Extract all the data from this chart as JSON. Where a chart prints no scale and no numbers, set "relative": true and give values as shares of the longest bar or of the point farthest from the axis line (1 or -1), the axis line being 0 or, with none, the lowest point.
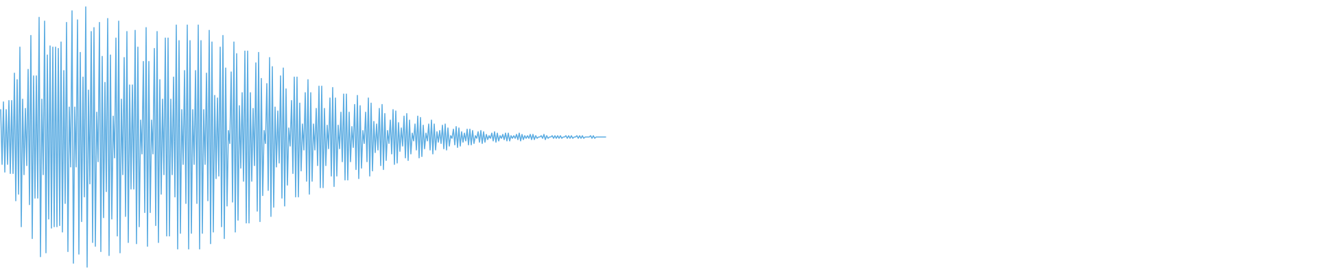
{
  "chart_data": {
    "type": "line",
    "relative": true,
    "categories": [
      null,
      null,
      null,
      null,
      null,
      null,
      null,
      null,
      null,
      null,
      null,
      null,
      null,
      null,
      null,
      null,
      null,
      null,
      null,
      null,
      null,
      null,
      null,
      null,
      null,
      null,
      null,
      null,
      null,
      null,
      null,
      null,
      null,
      null,
      null,
      null,
      null,
      null,
      null,
      null,
      null,
      null,
      null,
      null,
      null,
      null,
      null,
      null,
      null,
      null,
      null,
      null,
      null,
      null,
      null,
      null,
      null,
      null,
      null,
      null,
      null,
      null,
      null,
      null,
      null,
      null,
      null,
      null,
      null,
      null,
      null,
      null,
      null,
      null,
      null,
      null,
      null,
      null,
      null,
      null,
      null,
      null,
      null,
      null,
      null,
      null,
      null,
      null,
      null,
      null,
      null,
      null,
      null,
      null,
      null,
      null,
      null,
      null,
      null,
      null,
      null,
      null,
      null,
      null,
      null,
      null,
      null,
      null,
      null,
      null,
      null,
      null,
      null,
      null,
      null,
      null,
      null,
      null,
      null,
      null,
      null,
      null,
      null,
      null,
      null,
      null,
      null,
      null,
      null,
      null,
      null,
      null,
      null,
      null,
      null,
      null,
      null,
      null,
      null,
      null,
      null,
      null,
      null,
      null,
      null,
      null,
      null,
      null,
      null,
      null,
      null,
      null,
      null,
      null,
      null,
      null,
      null,
      null,
      null,
      null,
      null,
      null,
      null,
      null,
      null,
      null,
      null,
      null,
      null,
      null,
      null,
      null,
      null,
      null,
      null,
      null,
      null,
      null,
      null,
      null,
      null,
      null,
      null,
      null,
      null,
      null,
      null,
      null,
      null,
      null,
      null,
      null,
      null,
      null,
      null,
      null,
      null,
      null,
      null,
      null,
      null,
      null,
      null,
      null,
      null,
      null,
      null,
      null,
      null,
      null,
      null,
      null,
      null,
      null,
      null,
      null,
      null,
      null,
      null,
      null,
      null,
      null,
      null,
      null,
      null,
      null,
      null,
      null,
      null,
      null,
      null,
      null,
      null,
      null,
      null,
      null,
      null,
      null,
      null,
      null,
      null,
      null,
      null,
      null,
      null,
      null,
      null,
      null,
      null,
      null,
      null,
      null,
      null,
      null,
      null,
      null,
      null,
      null,
      null,
      null,
      null,
      null,
      null,
      null,
      null,
      null,
      null,
      null,
      null,
      null,
      null,
      null,
      null,
      null,
      null,
      null,
      null,
      null,
      null,
      null,
      null,
      null,
      null,
      null,
      null,
      null,
      null,
      null,
      null,
      null,
      null,
      null,
      null,
      null,
      null,
      null,
      null,
      null,
      null,
      null,
      null,
      null,
      null,
      null,
      null,
      null,
      null,
      null,
      null,
      null,
      null,
      null,
      null,
      null,
      null,
      null,
      null,
      null,
      null,
      null,
      null,
      null,
      null,
      null,
      null,
      null,
      null,
      null,
      null,
      null,
      null,
      null,
      null,
      null,
      null,
      null,
      null,
      null,
      null,
      null,
      null,
      null,
      null,
      null,
      null,
      null,
      null,
      null,
      null,
      null,
      null,
      null,
      null,
      null,
      null,
      null,
      null,
      null,
      null,
      null,
      null,
      null,
      null,
      null,
      null,
      null,
      null,
      null,
      null,
      null,
      null,
      null,
      null,
      null,
      null,
      null,
      null,
      null,
      null,
      null,
      null,
      null,
      null,
      null,
      null,
      null,
      null,
      null,
      null,
      null,
      null,
      null,
      null,
      null,
      null,
      null,
      null,
      null,
      null,
      null,
      null,
      null,
      null,
      null,
      null,
      null,
      null,
      null,
      null,
      null,
      null,
      null,
      null,
      null,
      null,
      null,
      null,
      null,
      null,
      null,
      null,
      null,
      null,
      null,
      null,
      null,
      null,
      null,
      null,
      null,
      null,
      null,
      null,
      null,
      null,
      null,
      null,
      null,
      null,
      null,
      null,
      null,
      null,
      null,
      null,
      null,
      null,
      null,
      null,
      null,
      null,
      null,
      null,
      null,
      null,
      null,
      null,
      null,
      null,
      null,
      null,
      null,
      null,
      null,
      null,
      null,
      null,
      null,
      null,
      null,
      null,
      null,
      null,
      null,
      null,
      null,
      null,
      null,
      null,
      null,
      null,
      null,
      null,
      null,
      null,
      null,
      null,
      null,
      null,
      null,
      null,
      null,
      null,
      null,
      null,
      null,
      null,
      null,
      null,
      null,
      null,
      null,
      null,
      null,
      null,
      null,
      null,
      null,
      null,
      null,
      null,
      null,
      null,
      null,
      null,
      null,
      null,
      null,
      null,
      null,
      null,
      null,
      null,
      null,
      null,
      null,
      null,
      null,
      null,
      null,
      null,
      null,
      null,
      null,
      null,
      null,
      null,
      null,
      null,
      null,
      null,
      null,
      null,
      null,
      null,
      null,
      null,
      null,
      null,
      null,
      null,
      null,
      null,
      null,
      null,
      null,
      null,
      null,
      null,
      null,
      null,
      null,
      null,
      null,
      null,
      null,
      null,
      null,
      null,
      null,
      null,
      null,
      null,
      null,
      null,
      null,
      null,
      null,
      null,
      null,
      null,
      null,
      null,
      null,
      null,
      null,
      null,
      null,
      null,
      null,
      null,
      null,
      null,
      null,
      null,
      null,
      null,
      null,
      null,
      null,
      null,
      null,
      null,
      null,
      null,
      null,
      null,
      null,
      null,
      null,
      null,
      null,
      null,
      null,
      null,
      null,
      null,
      null,
      null,
      null,
      null,
      null,
      null,
      null,
      null,
      null,
      null,
      null,
      null,
      null,
      null,
      null,
      null,
      null,
      null,
      null,
      null,
      null,
      null,
      null,
      null,
      null,
      null,
      null,
      null,
      null,
      null,
      null,
      null,
      null,
      null,
      null,
      null,
      null,
      null,
      null,
      null,
      null,
      null,
      null,
      null,
      null,
      null,
      null,
      null,
      null,
      null,
      null,
      null,
      null,
      null,
      null,
      null,
      null,
      null,
      null,
      null,
      null,
      null,
      null,
      null,
      null,
      null,
      null,
      null,
      null,
      null,
      null,
      null,
      null,
      null,
      null,
      null,
      null,
      null,
      null,
      null,
      null,
      null,
      null,
      null,
      null,
      null,
      null,
      null,
      null,
      null,
      null,
      null,
      null,
      null,
      null,
      null,
      null,
      null,
      null,
      null,
      null,
      null,
      null,
      null,
      null,
      null,
      null,
      null,
      null,
      null,
      null,
      null,
      null,
      null,
      null,
      null,
      null,
      null,
      null,
      null,
      null,
      null,
      null,
      null,
      null,
      null,
      null,
      null,
      null,
      null,
      null,
      null,
      null,
      null,
      null,
      null,
      null,
      null,
      null,
      null,
      null,
      null,
      null,
      null,
      null,
      null,
      null,
      null,
      null,
      null,
      null,
      null,
      null,
      null,
      null,
      null,
      null,
      null,
      null,
      null,
      null,
      null,
      null,
      null,
      null,
      null,
      null,
      null,
      null,
      null,
      null,
      null,
      null,
      null,
      null,
      null,
      null,
      null,
      null,
      null,
      null,
      null,
      null,
      null,
      null,
      null,
      null,
      null,
      null,
      null,
      null,
      null,
      null,
      null,
      null,
      null,
      null,
      null,
      null,
      null,
      null,
      null,
      null,
      null,
      null,
      null,
      null,
      null,
      null,
      null,
      null,
      null,
      null,
      null,
      null,
      null,
      null,
      null,
      null,
      null,
      null,
      null,
      null,
      null,
      null,
      null,
      null,
      null,
      null,
      null,
      null,
      null,
      null,
      null,
      null,
      null,
      null,
      null,
      null,
      null,
      null,
      null,
      null,
      null,
      null,
      null,
      null,
      null,
      null,
      null,
      null,
      null,
      null,
      null,
      null,
      null,
      null,
      null,
      null,
      null,
      null,
      null,
      null,
      null,
      null,
      null,
      null,
      null,
      null,
      null,
      null,
      null,
      null,
      null,
      null,
      null,
      null,
      null,
      null,
      null,
      null,
      null,
      null,
      null,
      null,
      null,
      null,
      null,
      null,
      null,
      null,
      null,
      null,
      null,
      null,
      null,
      null,
      null,
      null,
      null,
      null,
      null,
      null,
      null,
      null,
      null,
      null,
      null,
      null,
      null,
      null,
      null,
      null,
      null,
      null,
      null,
      null,
      null,
      null,
      null,
      null,
      null,
      null,
      null,
      null,
      null,
      null,
      null,
      null,
      null,
      null,
      null,
      null,
      null,
      null,
      null,
      null,
      null,
      null,
      null,
      null,
      null,
      null
    ],
    "series": [
      {
        "color": "#5dade2",
        "values": [
          0.605,
          0.395,
          0.635,
          0.365,
          0.605,
          0.395,
          0.64,
          0.36,
          0.64,
          0.36,
          0.745,
          0.255,
          0.72,
          0.28,
          0.845,
          0.155,
          0.645,
          0.355,
          0.61,
          0.39,
          0.76,
          0.24,
          0.89,
          0.11,
          0.735,
          0.265,
          0.735,
          0.265,
          0.96,
          0.04,
          0.645,
          0.355,
          0.945,
          0.055,
          0.815,
          0.185,
          0.85,
          0.15,
          0.845,
          0.155,
          0.845,
          0.155,
          0.84,
          0.16,
          0.865,
          0.135,
          0.755,
          0.245,
          0.94,
          0.06,
          0.615,
          0.385,
          0.985,
          0.015,
          0.615,
          0.385,
          0.95,
          0.05,
          0.825,
          0.175,
          0.73,
          0.27,
          1,
          0,
          0.68,
          0.32,
          0.905,
          0.095,
          0.92,
          0.08,
          0.595,
          0.405,
          0.94,
          0.06,
          0.81,
          0.19,
          0.71,
          0.29,
          0.955,
          0.045,
          0.815,
          0.185,
          0.58,
          0.42,
          0.88,
          0.12,
          0.945,
          0.055,
          0.645,
          0.355,
          0.805,
          0.195,
          0.905,
          0.095,
          0.7,
          0.3,
          0.7,
          0.3,
          0.91,
          0.09,
          0.845,
          0.155,
          0.565,
          0.435,
          0.79,
          0.21,
          0.92,
          0.08,
          0.79,
          0.21,
          0.565,
          0.435,
          0.84,
          0.16,
          0.905,
          0.095,
          0.72,
          0.28,
          0.645,
          0.355,
          0.88,
          0.12,
          0.88,
          0.12,
          0.645,
          0.355,
          0.73,
          0.27,
          0.93,
          0.07,
          0.87,
          0.13,
          0.605,
          0.395,
          0.755,
          0.245,
          0.93,
          0.07,
          0.87,
          0.13,
          0.605,
          0.395,
          0.755,
          0.245,
          0.93,
          0.07,
          0.87,
          0.13,
          0.605,
          0.395,
          0.745,
          0.255,
          0.91,
          0.09,
          0.865,
          0.135,
          0.66,
          0.34,
          0.65,
          0.35,
          0.845,
          0.155,
          0.89,
          0.11,
          0.765,
          0.235,
          0.525,
          0.475,
          0.75,
          0.25,
          0.865,
          0.135,
          0.82,
          0.18,
          0.62,
          0.38,
          0.67,
          0.33,
          0.83,
          0.17,
          0.83,
          0.17,
          0.67,
          0.33,
          0.61,
          0.39,
          0.785,
          0.215,
          0.825,
          0.175,
          0.725,
          0.275,
          0.525,
          0.475,
          0.705,
          0.295,
          0.805,
          0.195,
          0.77,
          0.23,
          0.615,
          0.385,
          0.6,
          0.4,
          0.735,
          0.265,
          0.765,
          0.235,
          0.685,
          0.315,
          0.535,
          0.465,
          0.64,
          0.36,
          0.73,
          0.27,
          0.73,
          0.27,
          0.63,
          0.37,
          0.55,
          0.45,
          0.67,
          0.33,
          0.72,
          0.28,
          0.67,
          0.33,
          0.55,
          0.45,
          0.61,
          0.39,
          0.695,
          0.305,
          0.695,
          0.305,
          0.61,
          0.39,
          0.545,
          0.455,
          0.65,
          0.35,
          0.69,
          0.31,
          0.65,
          0.35,
          0.545,
          0.455,
          0.595,
          0.405,
          0.665,
          0.335,
          0.665,
          0.335,
          0.595,
          0.405,
          0.54,
          0.46,
          0.625,
          0.375,
          0.66,
          0.34,
          0.62,
          0.38,
          0.525,
          0.475,
          0.595,
          0.405,
          0.65,
          0.35,
          0.63,
          0.37,
          0.56,
          0.44,
          0.55,
          0.45,
          0.61,
          0.39,
          0.625,
          0.375,
          0.59,
          0.41,
          0.525,
          0.475,
          0.565,
          0.435,
          0.605,
          0.395,
          0.6,
          0.4,
          0.555,
          0.445,
          0.535,
          0.465,
          0.58,
          0.42,
          0.59,
          0.41,
          0.565,
          0.435,
          0.515,
          0.485,
          0.55,
          0.45,
          0.58,
          0.42,
          0.575,
          0.425,
          0.545,
          0.455,
          0.515,
          0.485,
          0.55,
          0.45,
          0.565,
          0.435,
          0.55,
          0.45,
          0.52,
          0.48,
          0.525,
          0.475,
          0.545,
          0.455,
          0.55,
          0.45,
          0.535,
          0.465,
          0.505,
          0.495,
          0.53,
          0.47,
          0.54,
          0.46,
          0.535,
          0.465,
          0.52,
          0.48,
          0.515,
          0.485,
          0.53,
          0.47,
          0.53,
          0.47,
          0.525,
          0.475,
          0.505,
          0.495,
          0.52,
          0.48,
          0.525,
          0.475,
          0.52,
          0.48,
          0.51,
          0.49,
          0.505,
          0.495,
          0.515,
          0.485,
          0.52,
          0.48,
          0.515,
          0.485,
          0.505,
          0.495,
          0.51,
          0.49,
          0.515,
          0.485,
          0.515,
          0.485,
          0.505,
          0.495,
          0.505,
          0.495,
          0.51,
          0.49,
          0.515,
          0.485,
          0.51,
          0.49,
          0.505,
          0.495,
          0.505,
          0.495,
          0.51,
          0.49,
          0.51,
          0.49,
          0.505,
          0.495,
          0.5,
          0.5,
          0.505,
          0.495,
          0.51,
          0.49,
          0.505,
          0.495,
          0.5,
          0.5,
          0.505,
          0.495,
          0.505,
          0.495,
          0.505,
          0.495,
          0.505,
          0.495,
          0.5,
          0.5,
          0.505,
          0.495,
          0.505,
          0.495,
          0.505,
          0.495,
          0.5,
          0.5,
          0.505,
          0.495,
          0.505,
          0.495,
          0.505,
          0.495,
          0.5,
          0.5,
          0.5,
          0.5,
          0.505,
          0.495,
          0.505,
          0.495,
          0.5,
          0.5,
          0.5,
          0.5,
          0.5,
          0.5,
          0.5,
          0.5,
          null,
          null,
          null,
          null,
          null,
          null,
          null,
          null,
          null,
          null,
          null,
          null,
          null,
          null,
          null,
          null,
          null,
          null,
          null,
          null,
          null,
          null,
          null,
          null,
          null,
          null,
          null,
          null,
          null,
          null,
          null,
          null,
          null,
          null,
          null,
          null,
          null,
          null,
          null,
          null,
          null,
          null,
          null,
          null,
          null,
          null,
          null,
          null,
          null,
          null,
          null,
          null,
          null,
          null,
          null,
          null,
          null,
          null,
          null,
          null,
          null,
          null,
          null,
          null,
          null,
          null,
          null,
          null,
          null,
          null,
          null,
          null,
          null,
          null,
          null,
          null,
          null,
          null,
          null,
          null,
          null,
          null,
          null,
          null,
          null,
          null,
          null,
          null,
          null,
          null,
          null,
          null,
          null,
          null,
          null,
          null,
          null,
          null,
          null,
          null,
          null,
          null,
          null,
          null,
          null,
          null,
          null,
          null,
          null,
          null,
          null,
          null,
          null,
          null,
          null,
          null,
          null,
          null,
          null,
          null,
          null,
          null,
          null,
          null,
          null,
          null,
          null,
          null,
          null,
          null,
          null,
          null,
          null,
          null,
          null,
          null,
          null,
          null,
          null,
          null,
          null,
          null,
          null,
          null,
          null,
          null,
          null,
          null,
          null,
          null,
          null,
          null,
          null,
          null,
          null,
          null,
          null,
          null,
          null,
          null,
          null,
          null,
          null,
          null,
          null,
          null,
          null,
          null,
          null,
          null,
          null,
          null,
          null,
          null,
          null,
          null,
          null,
          null,
          null,
          null,
          null,
          null,
          null,
          null,
          null,
          null,
          null,
          null,
          null,
          null,
          null,
          null,
          null,
          null,
          null,
          null,
          null,
          null,
          null,
          null,
          null,
          null,
          null,
          null,
          null,
          null,
          null,
          null,
          null,
          null,
          null,
          null,
          null,
          null,
          null,
          null,
          null,
          null,
          null,
          null,
          null,
          null,
          null,
          null,
          null,
          null,
          null,
          null,
          null,
          null,
          null,
          null,
          null,
          null,
          null,
          null,
          null,
          null,
          null,
          null,
          null,
          null,
          null,
          null,
          null,
          null,
          null,
          null,
          null,
          null,
          null,
          null,
          null,
          null,
          null,
          null,
          null,
          null,
          null,
          null,
          null,
          null,
          null,
          null,
          null,
          null,
          null,
          null,
          null,
          null,
          null,
          null,
          null,
          null,
          null,
          null,
          null,
          null,
          null,
          null,
          null,
          null,
          null,
          null,
          null,
          null,
          null,
          null,
          null,
          null,
          null,
          null,
          null,
          null,
          null,
          null,
          null,
          null,
          null,
          null,
          null,
          null,
          null,
          null,
          null,
          null,
          null,
          null,
          null,
          null,
          null,
          null,
          null,
          null,
          null,
          null,
          null,
          null,
          null,
          null,
          null,
          null,
          null,
          null,
          null,
          null,
          null,
          null,
          null,
          null,
          null,
          null,
          null,
          null,
          null,
          null,
          null,
          null,
          null,
          null,
          null,
          null,
          null,
          null,
          null,
          null,
          null,
          null,
          null,
          null,
          null,
          null,
          null,
          null,
          null,
          null,
          null,
          null,
          null,
          null,
          null,
          null,
          null,
          null,
          null,
          null,
          null,
          null,
          null,
          null,
          null,
          null,
          null,
          null,
          null,
          null,
          null,
          null,
          null,
          null,
          null,
          null,
          null,
          null,
          null,
          null,
          null,
          null,
          null,
          null,
          null,
          null,
          null,
          null,
          null,
          null,
          null,
          null,
          null,
          null,
          null,
          null,
          null,
          null,
          null,
          null,
          null,
          null,
          null,
          null,
          null,
          null,
          null,
          null,
          null,
          null,
          null,
          null,
          null,
          null,
          null,
          null,
          null,
          null,
          null,
          null,
          null,
          null,
          null,
          null,
          null,
          null,
          null,
          null,
          null,
          null,
          null,
          null,
          null,
          null,
          null,
          null,
          null,
          null,
          null,
          null,
          null,
          null,
          null,
          null,
          null,
          null,
          null,
          null,
          null,
          null,
          null,
          null,
          null,
          null,
          null,
          null,
          null,
          null,
          null,
          null,
          null,
          null,
          null,
          null,
          null,
          null,
          null,
          null,
          null,
          null,
          null,
          null,
          null,
          null,
          null,
          null,
          null,
          null,
          null,
          null,
          null,
          null,
          null,
          null,
          null,
          null,
          null,
          null,
          null,
          null,
          null,
          null,
          null,
          null,
          null,
          null,
          null,
          null,
          null,
          null,
          null,
          null,
          null,
          null,
          null,
          null,
          null,
          null,
          null,
          null,
          null,
          null
        ]
      }
    ]
  }
}
